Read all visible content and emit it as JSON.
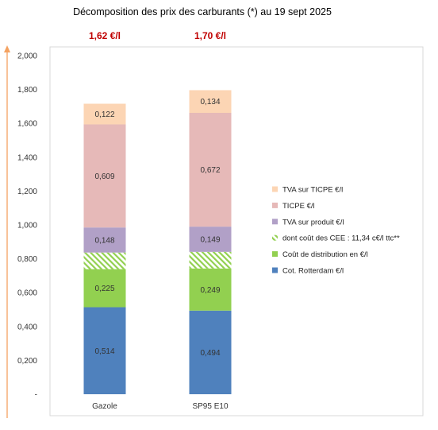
{
  "chart_data": {
    "type": "bar",
    "stacked": true,
    "title": "Décomposition des prix des carburants (*) au 19 sept 2025",
    "categories": [
      "Gazole",
      "SP95 E10"
    ],
    "totals": [
      "1,62 €/l",
      "1,70 €/l"
    ],
    "ylim": [
      0,
      2.0
    ],
    "yticks": [
      "-",
      "0,200",
      "0,400",
      "0,600",
      "0,800",
      "1,000",
      "1,200",
      "1,400",
      "1,600",
      "1,800",
      "2,000"
    ],
    "legend_position": "right",
    "series": [
      {
        "name": "Cot. Rotterdam €/l",
        "values": [
          0.514,
          0.494
        ],
        "labels": [
          "0,514",
          "0,494"
        ],
        "color": "#4f81bd"
      },
      {
        "name": "Coût de distribution en €/l",
        "values": [
          0.225,
          0.249
        ],
        "labels": [
          "0,225",
          "0,249"
        ],
        "color": "#92d050"
      },
      {
        "name": "dont coût des CEE : 11,34 c€/l ttc**",
        "values": [
          0.098,
          0.098
        ],
        "labels": [
          "",
          ""
        ],
        "color": "#92d050",
        "pattern": "hatch"
      },
      {
        "name": "TVA sur produit €/l",
        "values": [
          0.148,
          0.149
        ],
        "labels": [
          "0,148",
          "0,149"
        ],
        "color": "#b1a0c7"
      },
      {
        "name": "TICPE €/l",
        "values": [
          0.609,
          0.672
        ],
        "labels": [
          "0,609",
          "0,672"
        ],
        "color": "#e6b9b8"
      },
      {
        "name": "TVA sur TICPE €/l",
        "values": [
          0.122,
          0.134
        ],
        "labels": [
          "0,122",
          "0,134"
        ],
        "color": "#fcd5b4"
      }
    ],
    "legend_order": [
      "TVA sur TICPE €/l",
      "TICPE €/l",
      "TVA sur produit €/l",
      "dont coût des CEE : 11,34 c€/l ttc**",
      "Coût de distribution en €/l",
      "Cot. Rotterdam €/l"
    ]
  }
}
